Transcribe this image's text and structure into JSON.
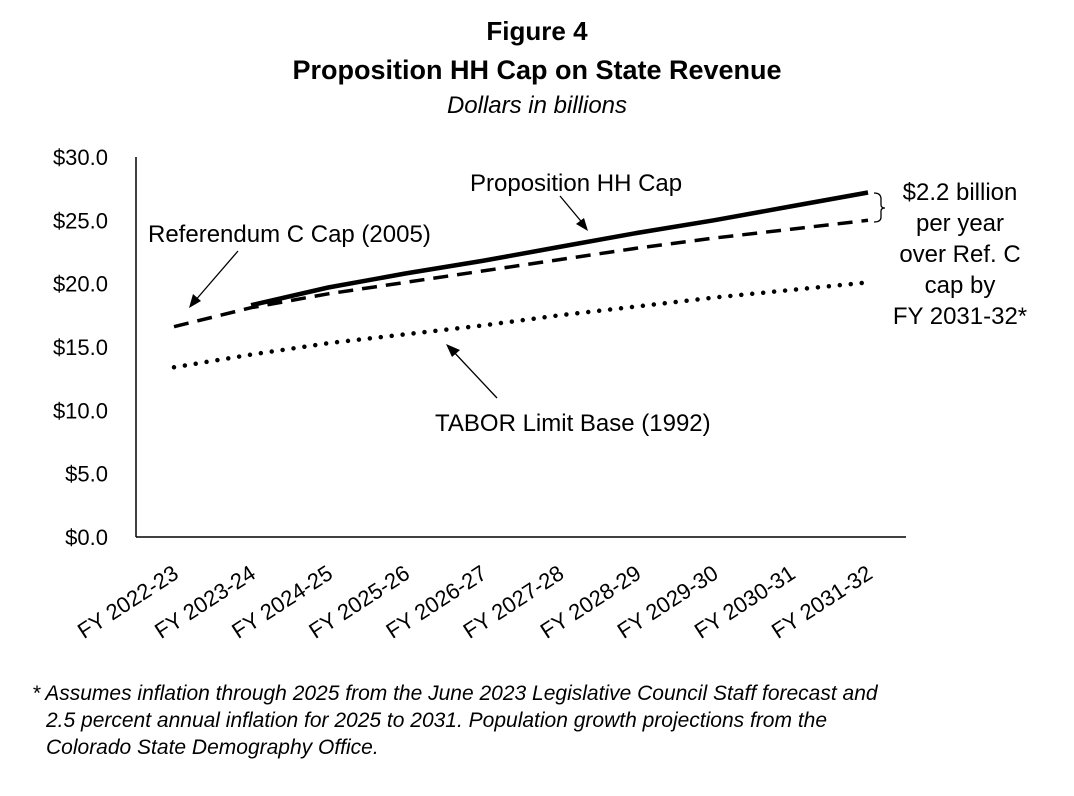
{
  "figure_number": "Figure 4",
  "title": "Proposition HH Cap on State Revenue",
  "subtitle": "Dollars in billions",
  "chart_data": {
    "type": "line",
    "categories": [
      "FY 2022-23",
      "FY 2023-24",
      "FY 2024-25",
      "FY 2025-26",
      "FY 2026-27",
      "FY 2027-28",
      "FY 2028-29",
      "FY 2029-30",
      "FY 2030-31",
      "FY 2031-32"
    ],
    "y_ticks": [
      "$0.0",
      "$5.0",
      "$10.0",
      "$15.0",
      "$20.0",
      "$25.0",
      "$30.0"
    ],
    "ylim": [
      0,
      30
    ],
    "grid": false,
    "series": [
      {
        "name": "Proposition HH Cap",
        "style": "solid",
        "color": "#000000",
        "values": [
          null,
          18.3,
          19.7,
          20.8,
          21.8,
          22.9,
          24.0,
          25.0,
          26.1,
          27.2
        ]
      },
      {
        "name": "Referendum C Cap (2005)",
        "style": "dashed",
        "color": "#000000",
        "values": [
          16.6,
          18.1,
          19.2,
          20.1,
          21.0,
          21.9,
          22.8,
          23.6,
          24.3,
          25.0
        ]
      },
      {
        "name": "TABOR Limit Base (1992)",
        "style": "dotted",
        "color": "#000000",
        "values": [
          13.4,
          14.4,
          15.3,
          16.0,
          16.7,
          17.5,
          18.2,
          18.9,
          19.5,
          20.1
        ]
      }
    ],
    "annotations": {
      "hh_label": "Proposition HH Cap",
      "refc_label": "Referendum C Cap (2005)",
      "tabor_label": "TABOR Limit Base (1992)",
      "gap_lines": [
        "$2.2 billion",
        "per year",
        "over Ref. C",
        "cap by",
        "FY 2031-32*"
      ]
    }
  },
  "footnote": {
    "line1": "* Assumes inflation through 2025 from the June 2023 Legislative Council Staff forecast and",
    "line2": "2.5 percent annual inflation for 2025 to 2031. Population growth projections from the",
    "line3": "Colorado State Demography Office."
  }
}
